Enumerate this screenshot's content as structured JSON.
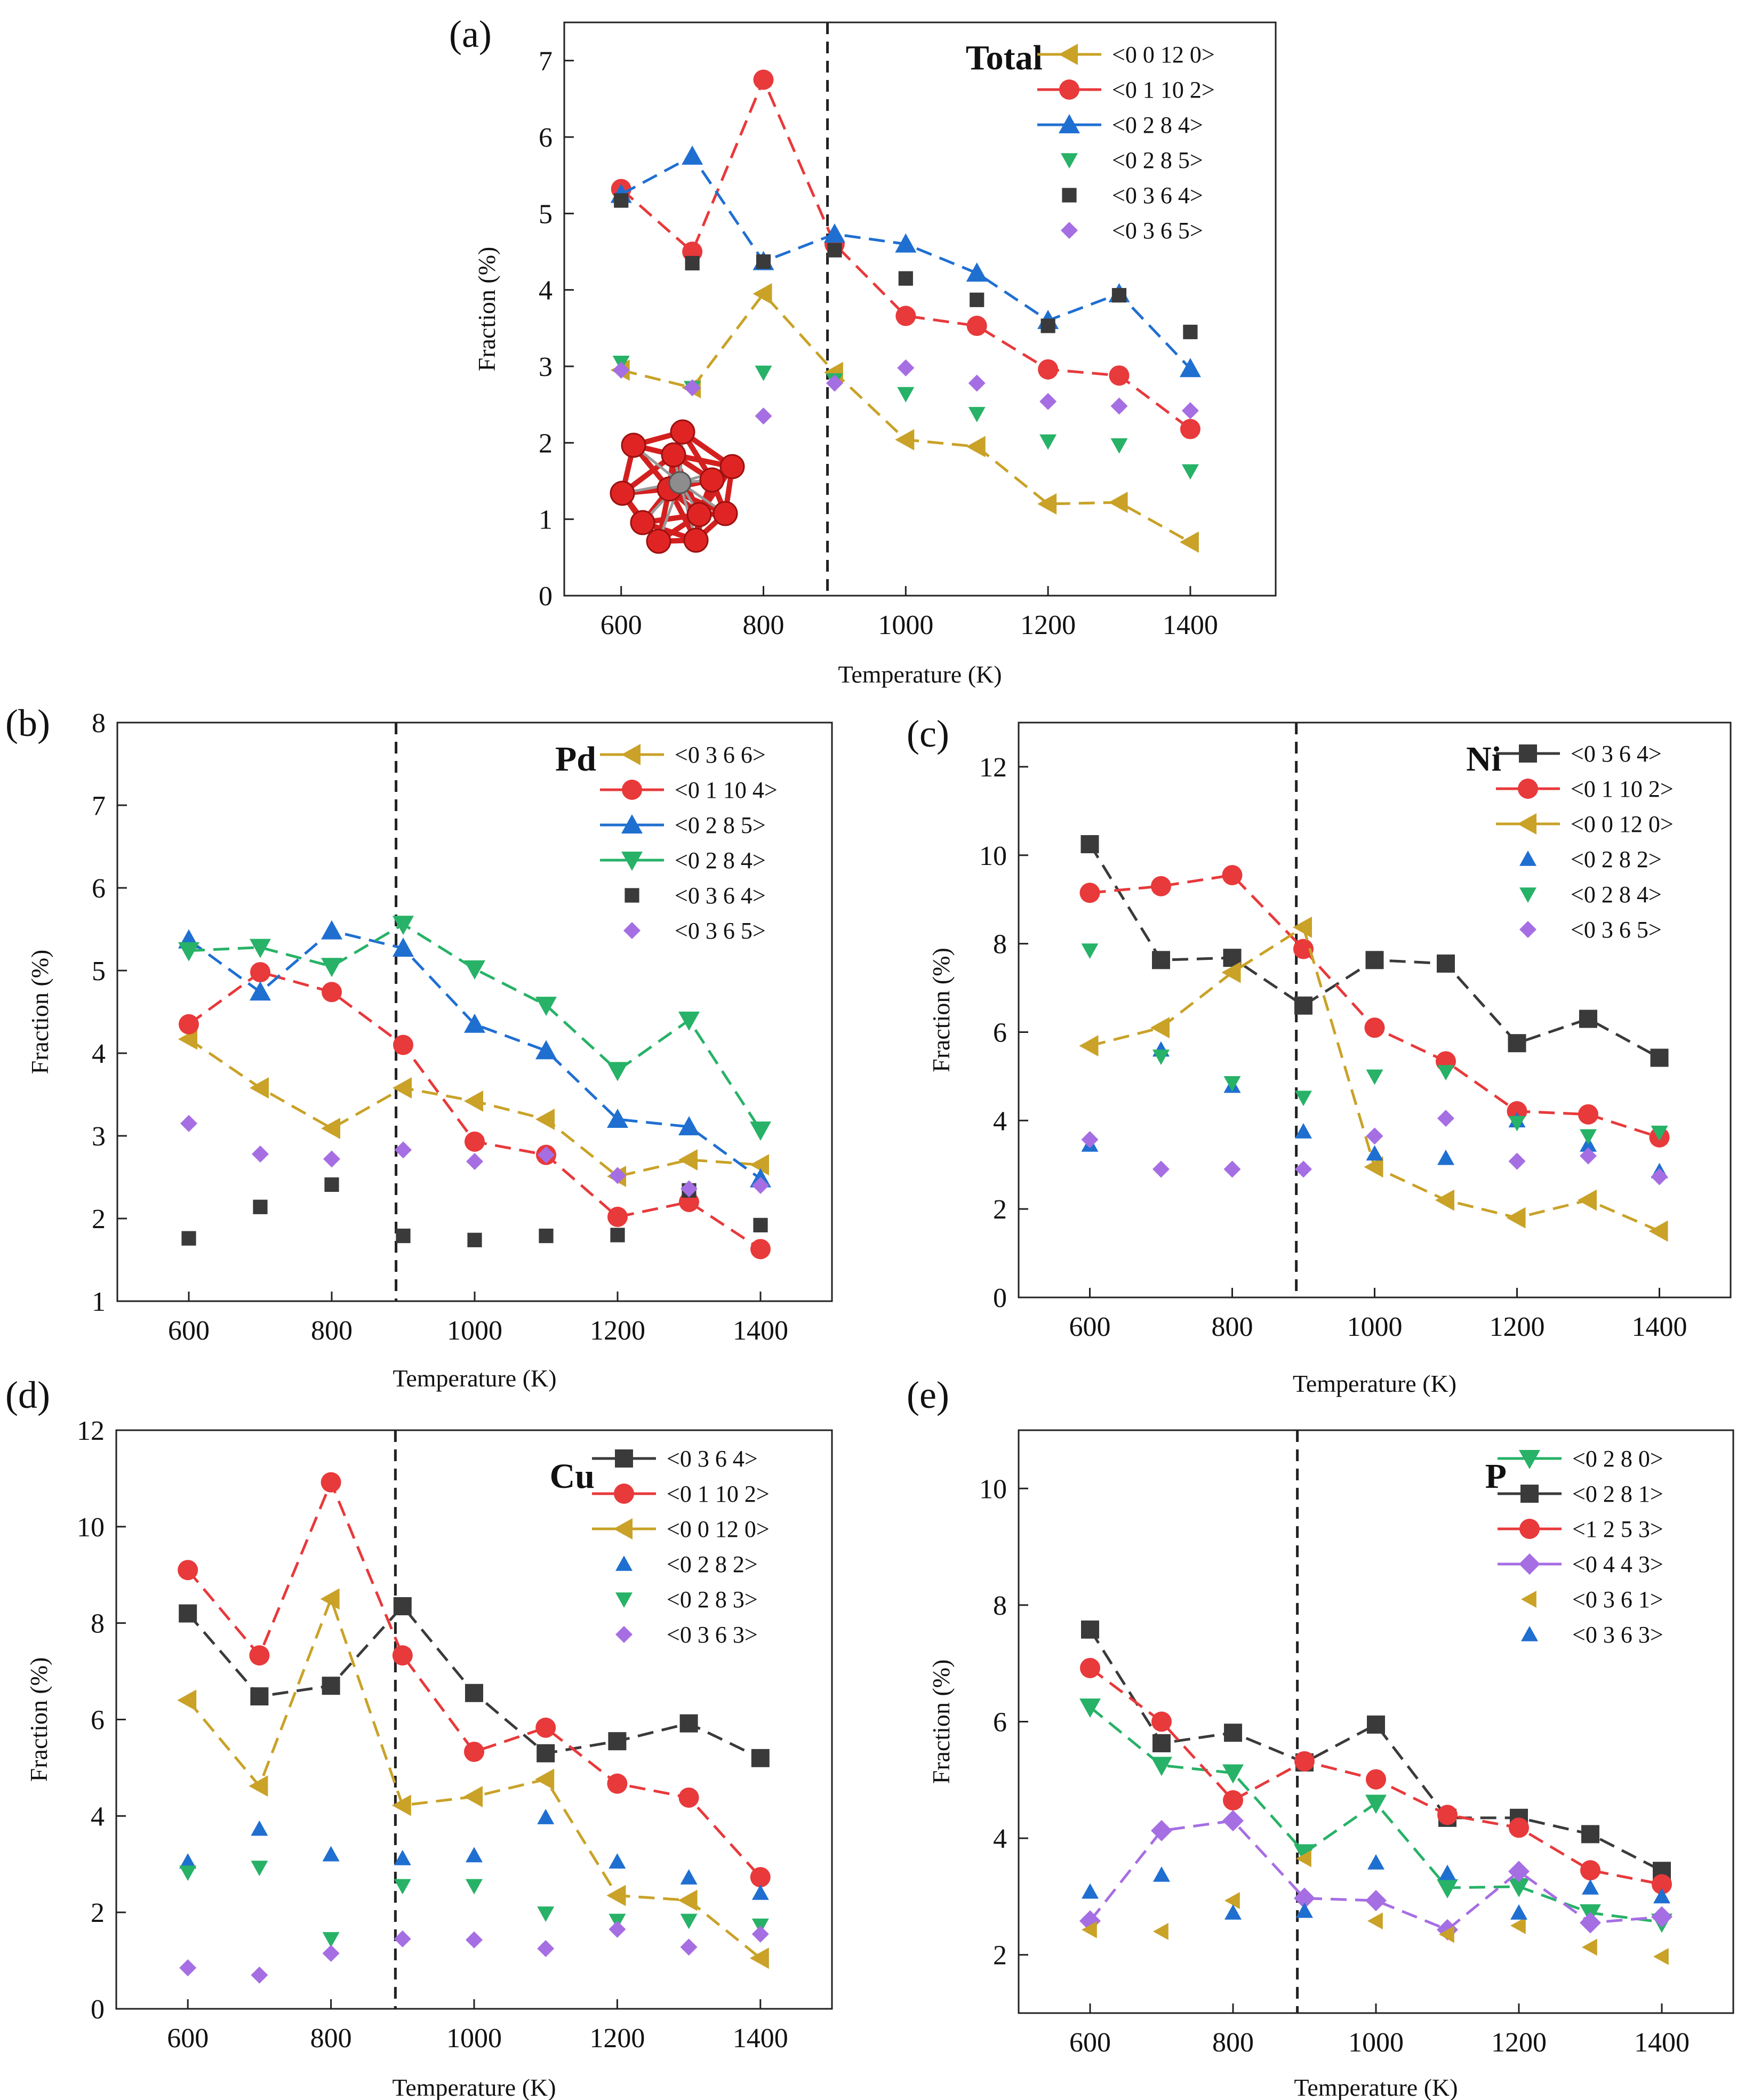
{
  "chart_data": [
    {
      "id": "a",
      "type": "line",
      "panel_label": "(a)",
      "title": "Total",
      "xlabel": "Temperature (K)",
      "ylabel": "Fraction (%)",
      "xlim": [
        520,
        1520
      ],
      "ylim": [
        0,
        7.5
      ],
      "xticks": [
        600,
        800,
        1000,
        1200,
        1400
      ],
      "yticks": [
        0,
        1,
        2,
        3,
        4,
        5,
        6,
        7
      ],
      "vline_x": 890,
      "x": [
        600,
        700,
        800,
        900,
        1000,
        1100,
        1200,
        1300,
        1400
      ],
      "series": [
        {
          "name": "<0 0 12 0>",
          "color": "#c9a227",
          "marker": "triangle-left",
          "line": true,
          "values": [
            2.95,
            2.72,
            3.95,
            2.92,
            2.04,
            1.95,
            1.2,
            1.22,
            0.7
          ]
        },
        {
          "name": "<0 1 10 2>",
          "color": "#e8393b",
          "marker": "circle",
          "line": true,
          "values": [
            5.32,
            4.5,
            6.75,
            4.6,
            3.66,
            3.53,
            2.96,
            2.88,
            2.18
          ]
        },
        {
          "name": "<0 2 8 4>",
          "color": "#1f6fd1",
          "marker": "triangle-up",
          "line": true,
          "values": [
            5.25,
            5.75,
            4.37,
            4.73,
            4.6,
            4.22,
            3.6,
            3.95,
            2.97
          ]
        },
        {
          "name": "<0 2 8 5>",
          "color": "#27b267",
          "marker": "triangle-down",
          "line": false,
          "values": [
            3.05,
            2.72,
            2.92,
            2.82,
            2.64,
            2.38,
            2.02,
            1.97,
            1.63
          ]
        },
        {
          "name": "<0 3 6 4>",
          "color": "#3a3a3a",
          "marker": "square",
          "line": false,
          "values": [
            5.17,
            4.35,
            4.37,
            4.52,
            4.15,
            3.87,
            3.53,
            3.93,
            3.45
          ]
        },
        {
          "name": "<0 3 6 5>",
          "color": "#a66ee3",
          "marker": "diamond",
          "line": false,
          "values": [
            2.95,
            2.72,
            2.35,
            2.78,
            2.98,
            2.78,
            2.54,
            2.48,
            2.42
          ]
        }
      ]
    },
    {
      "id": "b",
      "type": "line",
      "panel_label": "(b)",
      "title": "Pd",
      "xlabel": "Temperature (K)",
      "ylabel": "Fraction (%)",
      "xlim": [
        500,
        1500
      ],
      "ylim": [
        1,
        8
      ],
      "xticks": [
        600,
        800,
        1000,
        1200,
        1400
      ],
      "yticks": [
        1,
        2,
        3,
        4,
        5,
        6,
        7,
        8
      ],
      "vline_x": 890,
      "x": [
        600,
        700,
        800,
        900,
        1000,
        1100,
        1200,
        1300,
        1400
      ],
      "series": [
        {
          "name": "<0 3 6 6>",
          "color": "#c9a227",
          "marker": "triangle-left",
          "line": true,
          "values": [
            4.17,
            3.58,
            3.09,
            3.58,
            3.42,
            3.2,
            2.51,
            2.71,
            2.65
          ]
        },
        {
          "name": "<0 1 10 4>",
          "color": "#e8393b",
          "marker": "circle",
          "line": true,
          "values": [
            4.35,
            4.98,
            4.74,
            4.1,
            2.93,
            2.77,
            2.02,
            2.2,
            1.63
          ]
        },
        {
          "name": "<0 2 8 5>",
          "color": "#1f6fd1",
          "marker": "triangle-up",
          "line": true,
          "values": [
            5.37,
            4.74,
            5.48,
            5.27,
            4.35,
            4.03,
            3.2,
            3.11,
            2.48
          ]
        },
        {
          "name": "<0 2 8 4>",
          "color": "#27b267",
          "marker": "triangle-down",
          "line": true,
          "values": [
            5.24,
            5.28,
            5.05,
            5.56,
            5.02,
            4.58,
            3.79,
            4.4,
            3.07
          ]
        },
        {
          "name": "<0 3 6 4>",
          "color": "#3a3a3a",
          "marker": "square",
          "line": false,
          "values": [
            1.76,
            2.14,
            2.41,
            1.79,
            1.74,
            1.79,
            1.8,
            2.34,
            1.92
          ]
        },
        {
          "name": "<0 3 6 5>",
          "color": "#a66ee3",
          "marker": "diamond",
          "line": false,
          "values": [
            3.15,
            2.78,
            2.72,
            2.83,
            2.69,
            2.77,
            2.52,
            2.36,
            2.4
          ]
        }
      ]
    },
    {
      "id": "c",
      "type": "line",
      "panel_label": "(c)",
      "title": "Ni",
      "xlabel": "Temperature (K)",
      "ylabel": "Fraction (%)",
      "xlim": [
        500,
        1500
      ],
      "ylim": [
        0,
        13
      ],
      "xticks": [
        600,
        800,
        1000,
        1200,
        1400
      ],
      "yticks": [
        0,
        2,
        4,
        6,
        8,
        10,
        12
      ],
      "vline_x": 890,
      "x": [
        600,
        700,
        800,
        900,
        1000,
        1100,
        1200,
        1300,
        1400
      ],
      "series": [
        {
          "name": "<0 3 6 4>",
          "color": "#3a3a3a",
          "marker": "square",
          "line": true,
          "values": [
            10.25,
            7.63,
            7.68,
            6.6,
            7.63,
            7.55,
            5.75,
            6.3,
            5.42
          ]
        },
        {
          "name": "<0 1 10 2>",
          "color": "#e8393b",
          "marker": "circle",
          "line": true,
          "values": [
            9.15,
            9.3,
            9.55,
            7.88,
            6.1,
            5.34,
            4.21,
            4.14,
            3.62
          ]
        },
        {
          "name": "<0 0 12 0>",
          "color": "#c9a227",
          "marker": "triangle-left",
          "line": true,
          "values": [
            5.69,
            6.1,
            7.35,
            8.37,
            2.95,
            2.2,
            1.8,
            2.2,
            1.5
          ]
        },
        {
          "name": "<0 2 8 2>",
          "color": "#1f6fd1",
          "marker": "triangle-up",
          "line": false,
          "values": [
            3.45,
            5.6,
            4.78,
            3.75,
            3.25,
            3.15,
            4.0,
            3.45,
            2.85
          ]
        },
        {
          "name": "<0 2 8 4>",
          "color": "#27b267",
          "marker": "triangle-down",
          "line": false,
          "values": [
            7.85,
            5.45,
            4.85,
            4.52,
            5.0,
            5.1,
            3.95,
            3.65,
            3.73
          ]
        },
        {
          "name": "<0 3 6 5>",
          "color": "#a66ee3",
          "marker": "diamond",
          "line": false,
          "values": [
            3.57,
            2.9,
            2.9,
            2.9,
            3.65,
            4.05,
            3.08,
            3.2,
            2.73
          ]
        }
      ]
    },
    {
      "id": "d",
      "type": "line",
      "panel_label": "(d)",
      "title": "Cu",
      "xlabel": "Temperature (K)",
      "ylabel": "Fraction (%)",
      "xlim": [
        500,
        1500
      ],
      "ylim": [
        0,
        12
      ],
      "xticks": [
        600,
        800,
        1000,
        1200,
        1400
      ],
      "yticks": [
        0,
        2,
        4,
        6,
        8,
        10,
        12
      ],
      "vline_x": 890,
      "x": [
        600,
        700,
        800,
        900,
        1000,
        1100,
        1200,
        1300,
        1400
      ],
      "series": [
        {
          "name": "<0 3 6 4>",
          "color": "#3a3a3a",
          "marker": "square",
          "line": true,
          "values": [
            8.2,
            6.48,
            6.7,
            8.35,
            6.55,
            5.3,
            5.55,
            5.92,
            5.2
          ]
        },
        {
          "name": "<0 1 10 2>",
          "color": "#e8393b",
          "marker": "circle",
          "line": true,
          "values": [
            9.1,
            7.33,
            10.92,
            7.33,
            5.33,
            5.83,
            4.67,
            4.38,
            2.73
          ]
        },
        {
          "name": "<0 0 12 0>",
          "color": "#c9a227",
          "marker": "triangle-left",
          "line": true,
          "values": [
            6.4,
            4.62,
            8.5,
            4.22,
            4.4,
            4.76,
            2.35,
            2.25,
            1.05
          ]
        },
        {
          "name": "<0 2 8 2>",
          "color": "#1f6fd1",
          "marker": "triangle-up",
          "line": false,
          "values": [
            3.05,
            3.73,
            3.2,
            3.12,
            3.18,
            3.97,
            3.05,
            2.72,
            2.4
          ]
        },
        {
          "name": "<0 2 8 3>",
          "color": "#27b267",
          "marker": "triangle-down",
          "line": false,
          "values": [
            2.83,
            2.93,
            1.45,
            2.55,
            2.55,
            1.98,
            1.83,
            1.83,
            1.73
          ]
        },
        {
          "name": "<0 3 6 3>",
          "color": "#a66ee3",
          "marker": "diamond",
          "line": false,
          "values": [
            0.85,
            0.7,
            1.15,
            1.45,
            1.43,
            1.25,
            1.65,
            1.28,
            1.55
          ]
        }
      ]
    },
    {
      "id": "e",
      "type": "line",
      "panel_label": "(e)",
      "title": "P",
      "xlabel": "Temperature (K)",
      "ylabel": "Fraction (%)",
      "xlim": [
        500,
        1500
      ],
      "ylim": [
        1,
        11
      ],
      "xticks": [
        600,
        800,
        1000,
        1200,
        1400
      ],
      "yticks": [
        2,
        4,
        6,
        8,
        10
      ],
      "vline_x": 890,
      "x": [
        600,
        700,
        800,
        900,
        1000,
        1100,
        1200,
        1300,
        1400
      ],
      "series": [
        {
          "name": "<0 2 8 0>",
          "color": "#27b267",
          "marker": "triangle-down",
          "line": true,
          "values": [
            6.25,
            5.25,
            5.12,
            3.75,
            4.6,
            3.15,
            3.17,
            2.72,
            2.56
          ]
        },
        {
          "name": "<0 2 8 1>",
          "color": "#3a3a3a",
          "marker": "square",
          "line": true,
          "values": [
            7.58,
            5.63,
            5.81,
            5.3,
            5.95,
            4.35,
            4.35,
            4.07,
            3.44
          ]
        },
        {
          "name": "<1 2 5 3>",
          "color": "#e8393b",
          "marker": "circle",
          "line": true,
          "values": [
            6.92,
            6.0,
            4.65,
            5.32,
            5.01,
            4.4,
            4.18,
            3.45,
            3.21
          ]
        },
        {
          "name": "<0 4 4 3>",
          "color": "#a66ee3",
          "marker": "diamond",
          "line": true,
          "values": [
            2.58,
            4.13,
            4.3,
            2.97,
            2.93,
            2.43,
            3.43,
            2.55,
            2.65
          ]
        },
        {
          "name": "<0 3 6 1>",
          "color": "#c9a227",
          "marker": "triangle-left",
          "line": false,
          "values": [
            2.43,
            2.4,
            2.93,
            3.65,
            2.58,
            2.35,
            2.5,
            2.13,
            1.97
          ]
        },
        {
          "name": "<0 3 6 3>",
          "color": "#1f6fd1",
          "marker": "triangle-up",
          "line": false,
          "values": [
            3.08,
            3.37,
            2.72,
            2.75,
            3.58,
            3.4,
            2.72,
            3.15,
            3.0
          ]
        }
      ]
    }
  ]
}
